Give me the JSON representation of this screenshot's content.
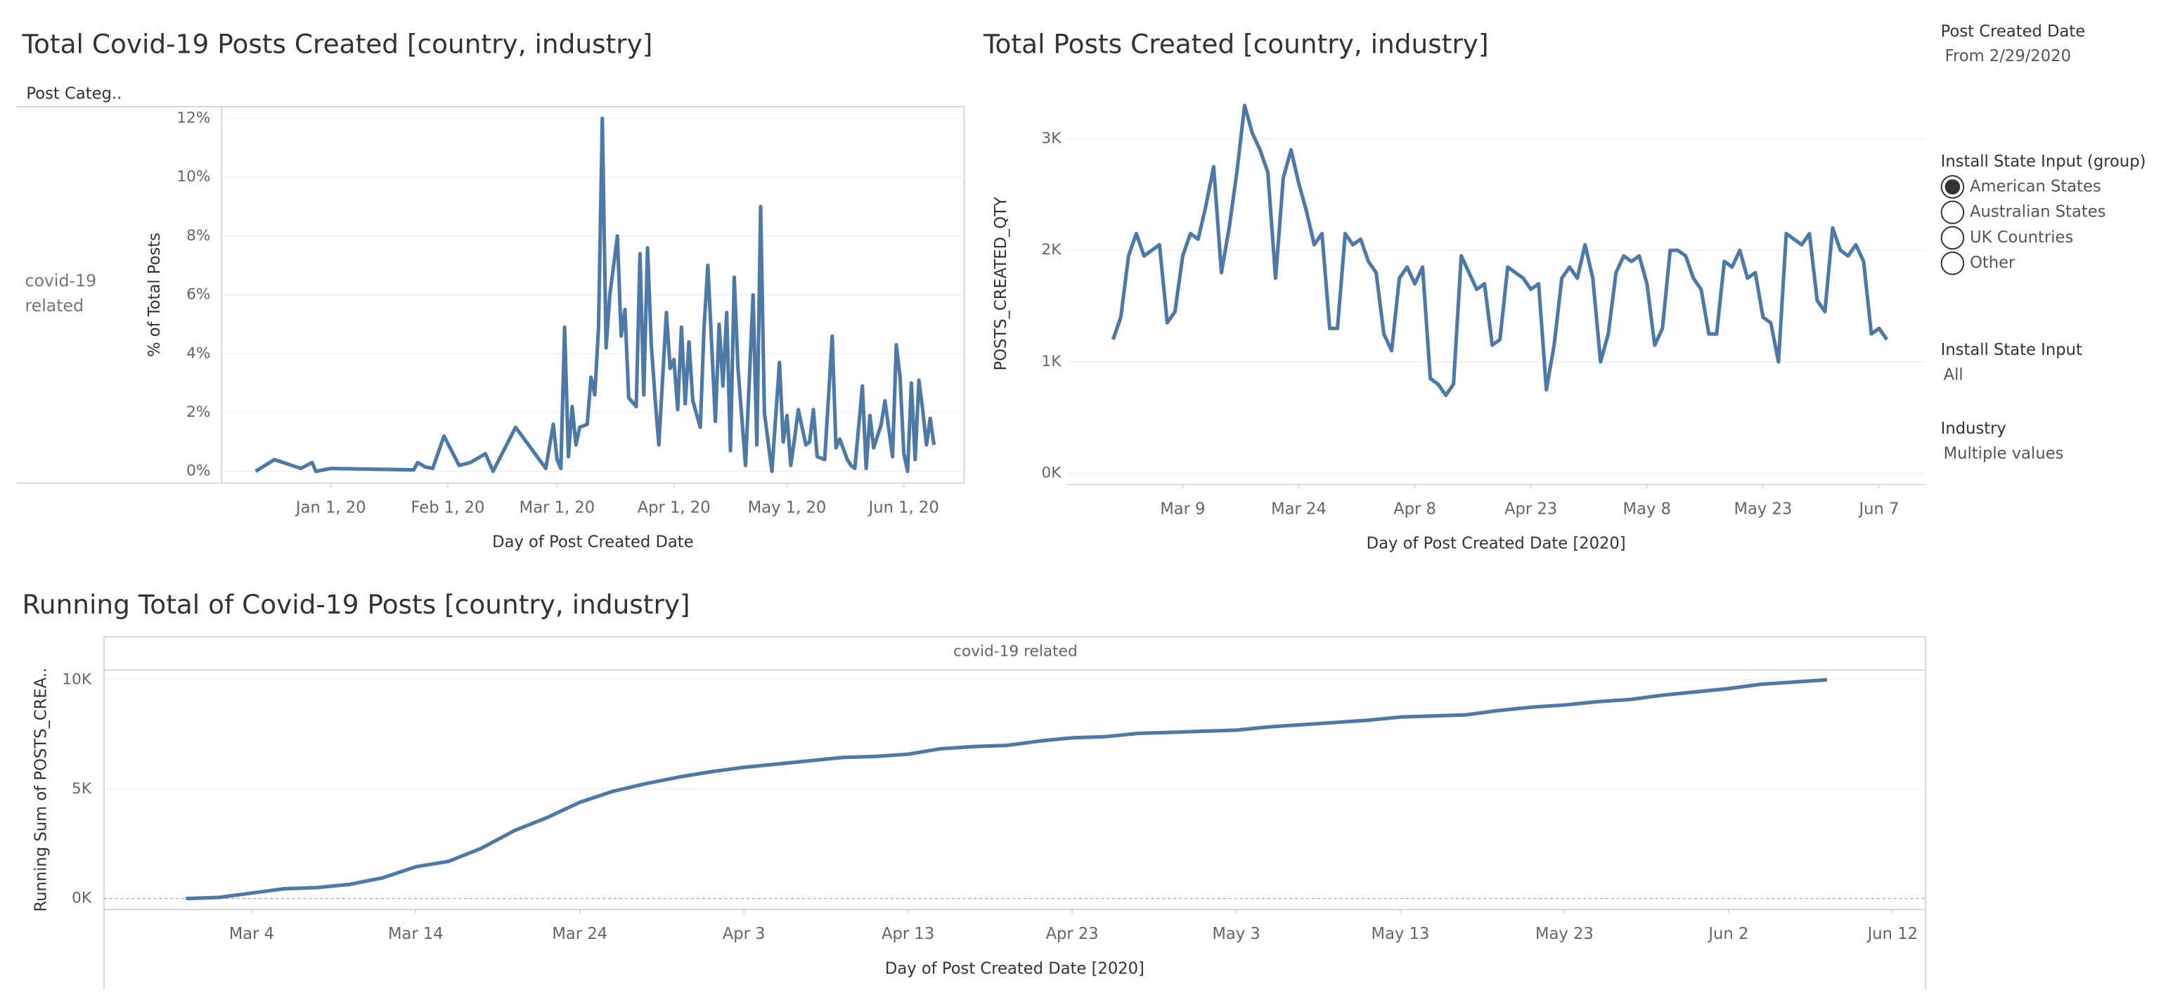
{
  "chart_data": [
    {
      "type": "line",
      "title": "Total Covid-19 Posts Created [country, industry]",
      "column_header": "Post Categ..",
      "row_header": "covid-19 related",
      "x_label": "Day of Post Created Date",
      "y_label": "% of Total Posts",
      "color": "#4e79a7",
      "grid": true,
      "x": [
        "2019-12-12",
        "2019-12-17",
        "2019-12-24",
        "2019-12-27",
        "2019-12-28",
        "2020-01-01",
        "2020-01-23",
        "2020-01-24",
        "2020-01-26",
        "2020-01-28",
        "2020-01-31",
        "2020-02-04",
        "2020-02-07",
        "2020-02-11",
        "2020-02-13",
        "2020-02-19",
        "2020-02-27",
        "2020-02-29",
        "2020-03-01",
        "2020-03-02",
        "2020-03-03",
        "2020-03-04",
        "2020-03-05",
        "2020-03-06",
        "2020-03-07",
        "2020-03-09",
        "2020-03-10",
        "2020-03-11",
        "2020-03-12",
        "2020-03-13",
        "2020-03-14",
        "2020-03-15",
        "2020-03-17",
        "2020-03-18",
        "2020-03-19",
        "2020-03-20",
        "2020-03-22",
        "2020-03-23",
        "2020-03-24",
        "2020-03-25",
        "2020-03-26",
        "2020-03-27",
        "2020-03-28",
        "2020-03-30",
        "2020-03-31",
        "2020-04-01",
        "2020-04-02",
        "2020-04-03",
        "2020-04-04",
        "2020-04-05",
        "2020-04-06",
        "2020-04-08",
        "2020-04-09",
        "2020-04-10",
        "2020-04-12",
        "2020-04-13",
        "2020-04-14",
        "2020-04-15",
        "2020-04-16",
        "2020-04-17",
        "2020-04-18",
        "2020-04-20",
        "2020-04-22",
        "2020-04-23",
        "2020-04-24",
        "2020-04-25",
        "2020-04-27",
        "2020-04-29",
        "2020-04-30",
        "2020-05-01",
        "2020-05-02",
        "2020-05-03",
        "2020-05-04",
        "2020-05-06",
        "2020-05-07",
        "2020-05-08",
        "2020-05-09",
        "2020-05-11",
        "2020-05-12",
        "2020-05-13",
        "2020-05-14",
        "2020-05-15",
        "2020-05-17",
        "2020-05-18",
        "2020-05-19",
        "2020-05-21",
        "2020-05-22",
        "2020-05-23",
        "2020-05-24",
        "2020-05-26",
        "2020-05-27",
        "2020-05-29",
        "2020-05-30",
        "2020-05-31",
        "2020-06-01",
        "2020-06-02",
        "2020-06-03",
        "2020-06-04",
        "2020-06-05",
        "2020-06-06",
        "2020-06-07",
        "2020-06-08",
        "2020-06-09"
      ],
      "values": [
        0.0,
        0.4,
        0.1,
        0.3,
        0.0,
        0.1,
        0.05,
        0.3,
        0.15,
        0.1,
        1.2,
        0.2,
        0.3,
        0.6,
        0.0,
        1.5,
        0.1,
        1.6,
        0.4,
        0.1,
        4.9,
        0.5,
        2.2,
        0.9,
        1.5,
        1.6,
        3.2,
        2.6,
        4.9,
        12.0,
        4.2,
        6.0,
        8.0,
        4.6,
        5.5,
        2.5,
        2.2,
        7.4,
        2.6,
        7.6,
        4.3,
        2.5,
        0.9,
        5.4,
        3.5,
        3.8,
        2.1,
        4.9,
        2.3,
        4.4,
        2.4,
        1.5,
        4.9,
        7.0,
        1.7,
        5.0,
        2.9,
        5.4,
        0.7,
        6.6,
        3.5,
        0.2,
        6.0,
        0.9,
        9.0,
        2.0,
        0.0,
        3.7,
        1.0,
        1.9,
        0.2,
        1.1,
        2.1,
        0.9,
        1.0,
        2.1,
        0.5,
        0.4,
        2.5,
        4.6,
        0.8,
        1.1,
        0.4,
        0.2,
        0.1,
        2.9,
        0.1,
        1.9,
        0.8,
        1.6,
        2.4,
        0.5,
        4.3,
        3.2,
        0.6,
        0.0,
        3.0,
        0.4,
        3.1,
        2.1,
        0.9,
        1.8,
        0.9
      ],
      "xlim": [
        "2019-12-03",
        "2020-06-17"
      ],
      "xticks": [
        {
          "value": "2020-01-01",
          "label": "Jan 1, 20"
        },
        {
          "value": "2020-02-01",
          "label": "Feb 1, 20"
        },
        {
          "value": "2020-03-01",
          "label": "Mar 1, 20"
        },
        {
          "value": "2020-04-01",
          "label": "Apr 1, 20"
        },
        {
          "value": "2020-05-01",
          "label": "May 1, 20"
        },
        {
          "value": "2020-06-01",
          "label": "Jun 1, 20"
        }
      ],
      "ylim": [
        -0.4,
        12.4
      ],
      "yticks": [
        {
          "value": 0,
          "label": "0%"
        },
        {
          "value": 2,
          "label": "2%"
        },
        {
          "value": 4,
          "label": "4%"
        },
        {
          "value": 6,
          "label": "6%"
        },
        {
          "value": 8,
          "label": "8%"
        },
        {
          "value": 10,
          "label": "10%"
        },
        {
          "value": 12,
          "label": "12%"
        }
      ]
    },
    {
      "type": "line",
      "title": "Total Posts Created [country, industry]",
      "x_label": "Day of Post Created Date [2020]",
      "y_label": "POSTS_CREATED_QTY",
      "color": "#4e79a7",
      "grid": true,
      "x": [
        "2020-02-29",
        "2020-03-01",
        "2020-03-02",
        "2020-03-03",
        "2020-03-04",
        "2020-03-05",
        "2020-03-06",
        "2020-03-07",
        "2020-03-08",
        "2020-03-09",
        "2020-03-10",
        "2020-03-11",
        "2020-03-12",
        "2020-03-13",
        "2020-03-14",
        "2020-03-15",
        "2020-03-16",
        "2020-03-17",
        "2020-03-18",
        "2020-03-19",
        "2020-03-20",
        "2020-03-21",
        "2020-03-22",
        "2020-03-23",
        "2020-03-24",
        "2020-03-25",
        "2020-03-26",
        "2020-03-27",
        "2020-03-28",
        "2020-03-29",
        "2020-03-30",
        "2020-03-31",
        "2020-04-01",
        "2020-04-02",
        "2020-04-03",
        "2020-04-04",
        "2020-04-05",
        "2020-04-06",
        "2020-04-07",
        "2020-04-08",
        "2020-04-09",
        "2020-04-10",
        "2020-04-11",
        "2020-04-12",
        "2020-04-13",
        "2020-04-14",
        "2020-04-15",
        "2020-04-16",
        "2020-04-17",
        "2020-04-18",
        "2020-04-19",
        "2020-04-20",
        "2020-04-21",
        "2020-04-22",
        "2020-04-23",
        "2020-04-24",
        "2020-04-25",
        "2020-04-26",
        "2020-04-27",
        "2020-04-28",
        "2020-04-29",
        "2020-04-30",
        "2020-05-01",
        "2020-05-02",
        "2020-05-03",
        "2020-05-04",
        "2020-05-05",
        "2020-05-06",
        "2020-05-07",
        "2020-05-08",
        "2020-05-09",
        "2020-05-10",
        "2020-05-11",
        "2020-05-12",
        "2020-05-13",
        "2020-05-14",
        "2020-05-15",
        "2020-05-16",
        "2020-05-17",
        "2020-05-18",
        "2020-05-19",
        "2020-05-20",
        "2020-05-21",
        "2020-05-22",
        "2020-05-23",
        "2020-05-24",
        "2020-05-25",
        "2020-05-26",
        "2020-05-27",
        "2020-05-28",
        "2020-05-29",
        "2020-05-30",
        "2020-05-31",
        "2020-06-01",
        "2020-06-02",
        "2020-06-03",
        "2020-06-04",
        "2020-06-05",
        "2020-06-06",
        "2020-06-07",
        "2020-06-08"
      ],
      "values": [
        1200,
        1400,
        1950,
        2150,
        1950,
        2000,
        2050,
        1350,
        1450,
        1950,
        2150,
        2100,
        2400,
        2750,
        1800,
        2200,
        2700,
        3300,
        3050,
        2900,
        2700,
        1750,
        2650,
        2900,
        2600,
        2350,
        2050,
        2150,
        1300,
        1300,
        2150,
        2050,
        2100,
        1900,
        1800,
        1250,
        1100,
        1750,
        1850,
        1700,
        1850,
        850,
        800,
        700,
        800,
        1950,
        1800,
        1650,
        1700,
        1150,
        1200,
        1850,
        1800,
        1750,
        1650,
        1700,
        750,
        1150,
        1750,
        1850,
        1750,
        2050,
        1750,
        1000,
        1250,
        1800,
        1950,
        1900,
        1950,
        1700,
        1150,
        1300,
        2000,
        2000,
        1950,
        1750,
        1650,
        1250,
        1250,
        1900,
        1850,
        2000,
        1750,
        1800,
        1400,
        1350,
        1000,
        2150,
        2100,
        2050,
        2150,
        1550,
        1450,
        2200,
        2000,
        1950,
        2050,
        1900,
        1250,
        1300,
        1200
      ],
      "xlim": [
        "2020-02-23",
        "2020-06-13"
      ],
      "xticks": [
        {
          "value": "2020-03-09",
          "label": "Mar 9"
        },
        {
          "value": "2020-03-24",
          "label": "Mar 24"
        },
        {
          "value": "2020-04-08",
          "label": "Apr 8"
        },
        {
          "value": "2020-04-23",
          "label": "Apr 23"
        },
        {
          "value": "2020-05-08",
          "label": "May 8"
        },
        {
          "value": "2020-05-23",
          "label": "May 23"
        },
        {
          "value": "2020-06-07",
          "label": "Jun 7"
        }
      ],
      "ylim": [
        -100,
        3500
      ],
      "yticks": [
        {
          "value": 0,
          "label": "0K"
        },
        {
          "value": 1000,
          "label": "1K"
        },
        {
          "value": 2000,
          "label": "2K"
        },
        {
          "value": 3000,
          "label": "3K"
        }
      ]
    },
    {
      "type": "line",
      "title": "Running Total of Covid-19 Posts [country, industry]",
      "panel_header": "covid-19 related",
      "x_label": "Day of Post Created Date [2020]",
      "y_label": "Running Sum of POSTS_CREA..",
      "color": "#4e79a7",
      "grid": true,
      "x": [
        "2020-02-29",
        "2020-03-02",
        "2020-03-04",
        "2020-03-06",
        "2020-03-08",
        "2020-03-10",
        "2020-03-12",
        "2020-03-14",
        "2020-03-16",
        "2020-03-18",
        "2020-03-20",
        "2020-03-22",
        "2020-03-24",
        "2020-03-26",
        "2020-03-28",
        "2020-03-30",
        "2020-04-01",
        "2020-04-03",
        "2020-04-05",
        "2020-04-07",
        "2020-04-09",
        "2020-04-11",
        "2020-04-13",
        "2020-04-15",
        "2020-04-17",
        "2020-04-19",
        "2020-04-21",
        "2020-04-23",
        "2020-04-25",
        "2020-04-27",
        "2020-04-29",
        "2020-05-01",
        "2020-05-03",
        "2020-05-05",
        "2020-05-07",
        "2020-05-09",
        "2020-05-11",
        "2020-05-13",
        "2020-05-15",
        "2020-05-17",
        "2020-05-19",
        "2020-05-21",
        "2020-05-23",
        "2020-05-25",
        "2020-05-27",
        "2020-05-29",
        "2020-05-31",
        "2020-06-02",
        "2020-06-04",
        "2020-06-06",
        "2020-06-08"
      ],
      "values": [
        0,
        50,
        250,
        450,
        500,
        650,
        950,
        1450,
        1700,
        2300,
        3100,
        3700,
        4400,
        4900,
        5250,
        5550,
        5800,
        6000,
        6150,
        6300,
        6450,
        6500,
        6600,
        6850,
        6950,
        7000,
        7200,
        7350,
        7400,
        7550,
        7600,
        7650,
        7700,
        7850,
        7950,
        8050,
        8150,
        8300,
        8350,
        8400,
        8600,
        8750,
        8850,
        9000,
        9100,
        9300,
        9450,
        9600,
        9800,
        9900,
        10000
      ],
      "xlim": [
        "2020-02-24",
        "2020-06-14"
      ],
      "xticks": [
        {
          "value": "2020-03-04",
          "label": "Mar 4"
        },
        {
          "value": "2020-03-14",
          "label": "Mar 14"
        },
        {
          "value": "2020-03-24",
          "label": "Mar 24"
        },
        {
          "value": "2020-04-03",
          "label": "Apr 3"
        },
        {
          "value": "2020-04-13",
          "label": "Apr 13"
        },
        {
          "value": "2020-04-23",
          "label": "Apr 23"
        },
        {
          "value": "2020-05-03",
          "label": "May 3"
        },
        {
          "value": "2020-05-13",
          "label": "May 13"
        },
        {
          "value": "2020-05-23",
          "label": "May 23"
        },
        {
          "value": "2020-06-02",
          "label": "Jun 2"
        },
        {
          "value": "2020-06-12",
          "label": "Jun 12"
        }
      ],
      "ylim": [
        -500,
        10450
      ],
      "yticks": [
        {
          "value": 0,
          "label": "0K"
        },
        {
          "value": 5000,
          "label": "5K"
        },
        {
          "value": 10000,
          "label": "10K"
        }
      ]
    }
  ],
  "controls": {
    "date_filter": {
      "title": "Post Created Date",
      "value": "From 2/29/2020"
    },
    "state_group": {
      "title": "Install State Input (group)",
      "options": [
        "American States",
        "Australian States",
        "UK Countries",
        "Other"
      ],
      "selected": 0
    },
    "state_input": {
      "title": "Install State Input",
      "value": "All"
    },
    "industry": {
      "title": "Industry",
      "value": "Multiple values"
    }
  }
}
